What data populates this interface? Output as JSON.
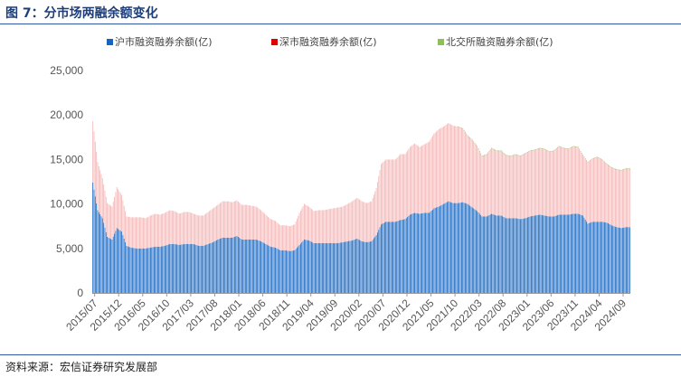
{
  "figure": {
    "title": "图 7：分市场两融余额变化",
    "source": "资料来源：宏信证券研究发展部"
  },
  "colors": {
    "title": "#1e3f7a",
    "rule": "#2f57a3",
    "sh": "#1565c0",
    "sz": "#f4b6b6",
    "sz_legend": "#e00000",
    "bj": "#8fbf5a"
  },
  "chart_data": {
    "type": "bar",
    "stacked": true,
    "legend_position": "top",
    "grid": false,
    "ylim": [
      0,
      25000
    ],
    "y_ticks": [
      0,
      5000,
      10000,
      15000,
      20000,
      25000
    ],
    "y_tick_labels": [
      "0",
      "5,000",
      "10,000",
      "15,000",
      "20,000",
      "25,000"
    ],
    "x_tick_labels": [
      "2015/07",
      "2015/12",
      "2016/05",
      "2016/10",
      "2017/03",
      "2017/08",
      "2018/01",
      "2018/06",
      "2018/11",
      "2019/04",
      "2019/09",
      "2020/02",
      "2020/07",
      "2020/12",
      "2021/05",
      "2021/10",
      "2022/03",
      "2022/08",
      "2023/01",
      "2023/06",
      "2023/11",
      "2024/04",
      "2024/09"
    ],
    "x_range": [
      "2015/07",
      "2024/10"
    ],
    "series": [
      {
        "name": "沪市融资融券余额(亿)",
        "points": [
          [
            "2015/07",
            12400
          ],
          [
            "2015/08",
            9300
          ],
          [
            "2015/09",
            8400
          ],
          [
            "2015/10",
            6300
          ],
          [
            "2015/11",
            6000
          ],
          [
            "2015/12",
            7300
          ],
          [
            "2016/01",
            6900
          ],
          [
            "2016/02",
            5300
          ],
          [
            "2016/03",
            5100
          ],
          [
            "2016/04",
            5000
          ],
          [
            "2016/05",
            5000
          ],
          [
            "2016/06",
            5000
          ],
          [
            "2016/07",
            5100
          ],
          [
            "2016/08",
            5200
          ],
          [
            "2016/09",
            5200
          ],
          [
            "2016/10",
            5300
          ],
          [
            "2016/11",
            5500
          ],
          [
            "2016/12",
            5500
          ],
          [
            "2017/01",
            5400
          ],
          [
            "2017/02",
            5500
          ],
          [
            "2017/03",
            5500
          ],
          [
            "2017/04",
            5500
          ],
          [
            "2017/05",
            5300
          ],
          [
            "2017/06",
            5300
          ],
          [
            "2017/07",
            5500
          ],
          [
            "2017/08",
            5700
          ],
          [
            "2017/09",
            6000
          ],
          [
            "2017/10",
            6200
          ],
          [
            "2017/11",
            6200
          ],
          [
            "2017/12",
            6200
          ],
          [
            "2018/01",
            6400
          ],
          [
            "2018/02",
            6000
          ],
          [
            "2018/03",
            6000
          ],
          [
            "2018/04",
            6000
          ],
          [
            "2018/05",
            6000
          ],
          [
            "2018/06",
            5800
          ],
          [
            "2018/07",
            5500
          ],
          [
            "2018/08",
            5200
          ],
          [
            "2018/09",
            5100
          ],
          [
            "2018/10",
            4800
          ],
          [
            "2018/11",
            4800
          ],
          [
            "2018/12",
            4700
          ],
          [
            "2019/01",
            4800
          ],
          [
            "2019/02",
            5400
          ],
          [
            "2019/03",
            6000
          ],
          [
            "2019/04",
            5900
          ],
          [
            "2019/05",
            5600
          ],
          [
            "2019/06",
            5600
          ],
          [
            "2019/07",
            5600
          ],
          [
            "2019/08",
            5600
          ],
          [
            "2019/09",
            5600
          ],
          [
            "2019/10",
            5600
          ],
          [
            "2019/11",
            5700
          ],
          [
            "2019/12",
            5800
          ],
          [
            "2020/01",
            5900
          ],
          [
            "2020/02",
            6100
          ],
          [
            "2020/03",
            5800
          ],
          [
            "2020/04",
            5700
          ],
          [
            "2020/05",
            5800
          ],
          [
            "2020/06",
            6500
          ],
          [
            "2020/07",
            7700
          ],
          [
            "2020/08",
            8000
          ],
          [
            "2020/09",
            8000
          ],
          [
            "2020/10",
            8000
          ],
          [
            "2020/11",
            8200
          ],
          [
            "2020/12",
            8300
          ],
          [
            "2021/01",
            8800
          ],
          [
            "2021/02",
            9000
          ],
          [
            "2021/03",
            8900
          ],
          [
            "2021/04",
            9000
          ],
          [
            "2021/05",
            9000
          ],
          [
            "2021/06",
            9500
          ],
          [
            "2021/07",
            9700
          ],
          [
            "2021/08",
            10000
          ],
          [
            "2021/09",
            10300
          ],
          [
            "2021/10",
            10100
          ],
          [
            "2021/11",
            10100
          ],
          [
            "2021/12",
            10200
          ],
          [
            "2022/01",
            10000
          ],
          [
            "2022/02",
            9600
          ],
          [
            "2022/03",
            9200
          ],
          [
            "2022/04",
            8600
          ],
          [
            "2022/05",
            8600
          ],
          [
            "2022/06",
            8900
          ],
          [
            "2022/07",
            8700
          ],
          [
            "2022/08",
            8700
          ],
          [
            "2022/09",
            8400
          ],
          [
            "2022/10",
            8400
          ],
          [
            "2022/11",
            8400
          ],
          [
            "2022/12",
            8300
          ],
          [
            "2023/01",
            8400
          ],
          [
            "2023/02",
            8600
          ],
          [
            "2023/03",
            8700
          ],
          [
            "2023/04",
            8800
          ],
          [
            "2023/05",
            8700
          ],
          [
            "2023/06",
            8600
          ],
          [
            "2023/07",
            8600
          ],
          [
            "2023/08",
            8800
          ],
          [
            "2023/09",
            8800
          ],
          [
            "2023/10",
            8800
          ],
          [
            "2023/11",
            8900
          ],
          [
            "2023/12",
            8900
          ],
          [
            "2024/01",
            8700
          ],
          [
            "2024/02",
            7800
          ],
          [
            "2024/03",
            8000
          ],
          [
            "2024/04",
            8000
          ],
          [
            "2024/05",
            8000
          ],
          [
            "2024/06",
            7900
          ],
          [
            "2024/07",
            7600
          ],
          [
            "2024/08",
            7400
          ],
          [
            "2024/09",
            7300
          ],
          [
            "2024/10",
            7400
          ]
        ]
      },
      {
        "name": "深市融资融券余额(亿)",
        "points": [
          [
            "2015/07",
            6900
          ],
          [
            "2015/08",
            5400
          ],
          [
            "2015/09",
            4500
          ],
          [
            "2015/10",
            3800
          ],
          [
            "2015/11",
            3700
          ],
          [
            "2015/12",
            4600
          ],
          [
            "2016/01",
            4100
          ],
          [
            "2016/02",
            3300
          ],
          [
            "2016/03",
            3400
          ],
          [
            "2016/04",
            3500
          ],
          [
            "2016/05",
            3500
          ],
          [
            "2016/06",
            3400
          ],
          [
            "2016/07",
            3600
          ],
          [
            "2016/08",
            3700
          ],
          [
            "2016/09",
            3600
          ],
          [
            "2016/10",
            3700
          ],
          [
            "2016/11",
            3800
          ],
          [
            "2016/12",
            3700
          ],
          [
            "2017/01",
            3500
          ],
          [
            "2017/02",
            3600
          ],
          [
            "2017/03",
            3600
          ],
          [
            "2017/04",
            3400
          ],
          [
            "2017/05",
            3400
          ],
          [
            "2017/06",
            3400
          ],
          [
            "2017/07",
            3600
          ],
          [
            "2017/08",
            3800
          ],
          [
            "2017/09",
            3900
          ],
          [
            "2017/10",
            4100
          ],
          [
            "2017/11",
            4100
          ],
          [
            "2017/12",
            4000
          ],
          [
            "2018/01",
            4000
          ],
          [
            "2018/02",
            3900
          ],
          [
            "2018/03",
            3900
          ],
          [
            "2018/04",
            3800
          ],
          [
            "2018/05",
            3700
          ],
          [
            "2018/06",
            3500
          ],
          [
            "2018/07",
            3300
          ],
          [
            "2018/08",
            3100
          ],
          [
            "2018/09",
            3000
          ],
          [
            "2018/10",
            2800
          ],
          [
            "2018/11",
            2800
          ],
          [
            "2018/12",
            2800
          ],
          [
            "2019/01",
            2900
          ],
          [
            "2019/02",
            3600
          ],
          [
            "2019/03",
            4000
          ],
          [
            "2019/04",
            3800
          ],
          [
            "2019/05",
            3600
          ],
          [
            "2019/06",
            3700
          ],
          [
            "2019/07",
            3700
          ],
          [
            "2019/08",
            3800
          ],
          [
            "2019/09",
            3900
          ],
          [
            "2019/10",
            4000
          ],
          [
            "2019/11",
            4000
          ],
          [
            "2019/12",
            4200
          ],
          [
            "2020/01",
            4400
          ],
          [
            "2020/02",
            4600
          ],
          [
            "2020/03",
            4500
          ],
          [
            "2020/04",
            4400
          ],
          [
            "2020/05",
            4500
          ],
          [
            "2020/06",
            5300
          ],
          [
            "2020/07",
            6800
          ],
          [
            "2020/08",
            7000
          ],
          [
            "2020/09",
            7000
          ],
          [
            "2020/10",
            7000
          ],
          [
            "2020/11",
            7400
          ],
          [
            "2020/12",
            7300
          ],
          [
            "2021/01",
            7600
          ],
          [
            "2021/02",
            7800
          ],
          [
            "2021/03",
            7500
          ],
          [
            "2021/04",
            7700
          ],
          [
            "2021/05",
            8000
          ],
          [
            "2021/06",
            8400
          ],
          [
            "2021/07",
            8700
          ],
          [
            "2021/08",
            8700
          ],
          [
            "2021/09",
            8800
          ],
          [
            "2021/10",
            8700
          ],
          [
            "2021/11",
            8600
          ],
          [
            "2021/12",
            8300
          ],
          [
            "2022/01",
            7700
          ],
          [
            "2022/02",
            7600
          ],
          [
            "2022/03",
            7300
          ],
          [
            "2022/04",
            6800
          ],
          [
            "2022/05",
            7000
          ],
          [
            "2022/06",
            7400
          ],
          [
            "2022/07",
            7300
          ],
          [
            "2022/08",
            7300
          ],
          [
            "2022/09",
            7100
          ],
          [
            "2022/10",
            7000
          ],
          [
            "2022/11",
            7200
          ],
          [
            "2022/12",
            7100
          ],
          [
            "2023/01",
            7300
          ],
          [
            "2023/02",
            7400
          ],
          [
            "2023/03",
            7400
          ],
          [
            "2023/04",
            7500
          ],
          [
            "2023/05",
            7500
          ],
          [
            "2023/06",
            7300
          ],
          [
            "2023/07",
            7400
          ],
          [
            "2023/08",
            7700
          ],
          [
            "2023/09",
            7500
          ],
          [
            "2023/10",
            7400
          ],
          [
            "2023/11",
            7600
          ],
          [
            "2023/12",
            7500
          ],
          [
            "2024/01",
            6800
          ],
          [
            "2024/02",
            6900
          ],
          [
            "2024/03",
            7100
          ],
          [
            "2024/04",
            7300
          ],
          [
            "2024/05",
            7000
          ],
          [
            "2024/06",
            6600
          ],
          [
            "2024/07",
            6500
          ],
          [
            "2024/08",
            6500
          ],
          [
            "2024/09",
            6500
          ],
          [
            "2024/10",
            6600
          ]
        ]
      },
      {
        "name": "北交所融资融券余额(亿)",
        "points": [
          [
            "2021/11",
            10
          ],
          [
            "2022/06",
            10
          ],
          [
            "2023/01",
            10
          ],
          [
            "2023/06",
            10
          ],
          [
            "2024/01",
            10
          ],
          [
            "2024/06",
            10
          ],
          [
            "2024/10",
            10
          ]
        ]
      }
    ]
  }
}
